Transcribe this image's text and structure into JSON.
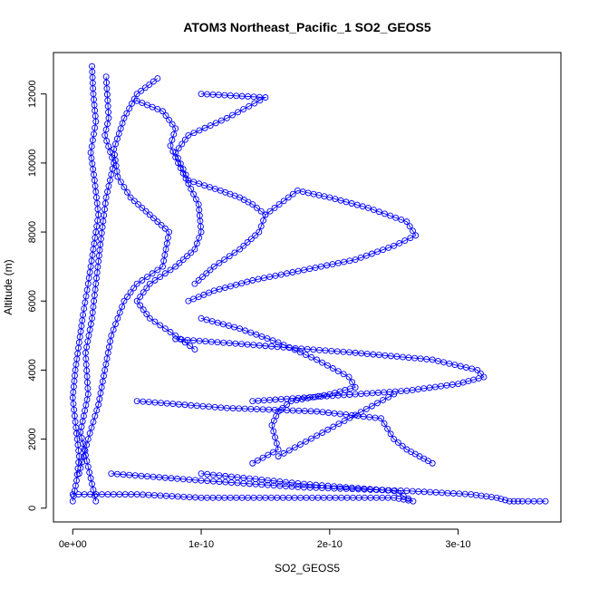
{
  "chart_data": {
    "type": "scatter",
    "title": "ATOM3 Northeast_Pacific_1 SO2_GEOS5",
    "xlabel": "SO2_GEOS5",
    "ylabel": "Altitude (m)",
    "xlim": [
      -1.5e-11,
      3.8e-10
    ],
    "ylim": [
      -400,
      13200
    ],
    "x_ticks": [
      0,
      1e-10,
      2e-10,
      3e-10
    ],
    "x_tick_labels": [
      "0e+00",
      "1e-10",
      "2e-10",
      "3e-10"
    ],
    "y_ticks": [
      0,
      2000,
      4000,
      6000,
      8000,
      10000,
      12000
    ],
    "y_tick_labels": [
      "0",
      "2000",
      "4000",
      "6000",
      "8000",
      "10000",
      "12000"
    ],
    "grid": false,
    "marker": "open-circle",
    "color": "#0000ff",
    "series": [
      {
        "x": [
          1.5e-11,
          1.6e-11,
          1.8e-11,
          1.4e-11,
          1.7e-11,
          2e-11,
          1.6e-11,
          1.2e-11,
          8e-12,
          5e-12,
          2e-12,
          0.0,
          2e-12,
          5e-12,
          3e-12,
          0.0
        ],
        "y": [
          12800,
          12000,
          11200,
          10300,
          9500,
          8500,
          7500,
          6500,
          5600,
          4800,
          4000,
          3200,
          2500,
          1500,
          800,
          200
        ]
      },
      {
        "x": [
          2.6e-11,
          2.8e-11,
          2.5e-11,
          3.2e-11,
          2.6e-11,
          2.2e-11,
          1.8e-11,
          1.5e-11,
          1e-11,
          1.2e-11,
          6e-12,
          1.8e-11
        ],
        "y": [
          12500,
          11300,
          10800,
          10000,
          9000,
          7800,
          6500,
          5500,
          4500,
          3300,
          2200,
          200
        ]
      },
      {
        "x": [
          6.6e-11,
          5e-11,
          4e-11,
          3.2e-11,
          3.5e-11,
          4.5e-11,
          6e-11,
          7.5e-11,
          7e-11,
          5e-11,
          4e-11,
          3e-11,
          2.5e-11,
          2e-11,
          1.2e-11,
          5e-12
        ],
        "y": [
          12450,
          12000,
          11300,
          10400,
          9600,
          9000,
          8500,
          8000,
          7000,
          6500,
          6000,
          5000,
          4000,
          3000,
          2000,
          1000
        ]
      },
      {
        "x": [
          5e-11,
          7e-11,
          8e-11,
          7.6e-11,
          8.2e-11,
          9.8e-11,
          1e-10,
          9.5e-11,
          8e-11,
          6e-11,
          5e-11,
          6e-11,
          8e-11,
          9.5e-11
        ],
        "y": [
          11800,
          11500,
          11000,
          10500,
          10000,
          8800,
          8000,
          7500,
          7000,
          6500,
          6000,
          5500,
          5000,
          4600
        ]
      },
      {
        "x": [
          1e-10,
          1.5e-10,
          1.2e-10,
          9e-11,
          8e-11,
          9e-11,
          1.15e-10,
          1.3e-10,
          1.4e-10,
          1.5e-10,
          1.45e-10,
          1.3e-10,
          1.1e-10,
          9.5e-11
        ],
        "y": [
          12000,
          11900,
          11300,
          10800,
          10300,
          9500,
          9200,
          9000,
          8800,
          8500,
          8000,
          7500,
          7000,
          6500
        ]
      },
      {
        "x": [
          1.5e-10,
          1.75e-10,
          2e-10,
          2.3e-10,
          2.6e-10,
          2.67e-10,
          2.5e-10,
          2.2e-10,
          1.8e-10,
          1.4e-10,
          1.1e-10,
          9e-11
        ],
        "y": [
          8500,
          9200,
          9000,
          8700,
          8300,
          7900,
          7600,
          7200,
          6900,
          6600,
          6300,
          6000
        ]
      },
      {
        "x": [
          1e-10,
          1.3e-10,
          1.6e-10,
          1.9e-10,
          2.15e-10,
          2.2e-10,
          2e-10,
          1.7e-10,
          1.6e-10,
          1.55e-10,
          1.6e-10,
          1.4e-10
        ],
        "y": [
          5500,
          5200,
          4800,
          4300,
          3800,
          3500,
          3300,
          3100,
          2800,
          2400,
          1700,
          1300
        ]
      },
      {
        "x": [
          8e-11,
          1.5e-10,
          2.2e-10,
          2.8e-10,
          3.15e-10,
          3.2e-10,
          3e-10,
          2.6e-10,
          2.2e-10,
          1.8e-10,
          1.4e-10
        ],
        "y": [
          4900,
          4700,
          4500,
          4300,
          4000,
          3800,
          3600,
          3400,
          3300,
          3200,
          3100
        ]
      },
      {
        "x": [
          5e-11,
          1.2e-10,
          1.9e-10,
          2.4e-10,
          2.45e-10,
          2.5e-10,
          2.6e-10,
          2.7e-10,
          2.8e-10
        ],
        "y": [
          3100,
          2900,
          2800,
          2600,
          2300,
          2000,
          1700,
          1500,
          1300
        ]
      },
      {
        "x": [
          3e-11,
          1e-10,
          1.8e-10,
          2.6e-10,
          3.1e-10,
          3.3e-10,
          3.4e-10,
          3.5e-10,
          3.68e-10
        ],
        "y": [
          1000,
          800,
          600,
          500,
          400,
          300,
          200,
          200,
          200
        ]
      },
      {
        "x": [
          0.0,
          5e-11,
          1e-10,
          1.5e-10,
          2e-10,
          2.5e-10,
          2.65e-10,
          2.5e-10,
          1.8e-10,
          1e-10
        ],
        "y": [
          400,
          400,
          300,
          300,
          300,
          300,
          200,
          500,
          700,
          1000
        ]
      },
      {
        "x": [
          1.6e-10,
          2.5e-10
        ],
        "y": [
          1500,
          3300
        ]
      }
    ]
  }
}
